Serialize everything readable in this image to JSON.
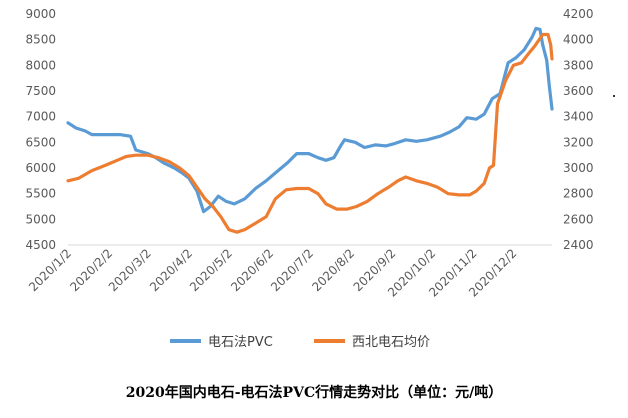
{
  "caption": "2020年国内电石-电石法PVC行情走势对比（单位：元/吨）",
  "chart_data": {
    "type": "line",
    "title": "",
    "xlabel": "",
    "ylabel": "",
    "grid": false,
    "legend_position": "bottom",
    "x_axis": {
      "type": "date",
      "range": [
        "2020-01-02",
        "2020-12-31"
      ],
      "tick_labels": [
        "2020/1/2",
        "2020/2/2",
        "2020/3/2",
        "2020/4/2",
        "2020/5/2",
        "2020/6/2",
        "2020/7/2",
        "2020/8/2",
        "2020/9/2",
        "2020/10/2",
        "2020/11/2",
        "2020/12/2"
      ],
      "tick_dates": [
        "2020-01-02",
        "2020-02-02",
        "2020-03-02",
        "2020-04-02",
        "2020-05-02",
        "2020-06-02",
        "2020-07-02",
        "2020-08-02",
        "2020-09-02",
        "2020-10-02",
        "2020-11-02",
        "2020-12-02"
      ]
    },
    "y_left": {
      "range": [
        4500,
        9000
      ],
      "ticks": [
        4500,
        5000,
        5500,
        6000,
        6500,
        7000,
        7500,
        8000,
        8500,
        9000
      ]
    },
    "y_right": {
      "range": [
        2400,
        4200
      ],
      "ticks": [
        2400,
        2600,
        2800,
        3000,
        3200,
        3400,
        3600,
        3800,
        4000,
        4200
      ]
    },
    "colors": {
      "pvc": "#5b9bd5",
      "carbide": "#ed7d31"
    },
    "series": [
      {
        "name": "电石法PVC",
        "axis": "left",
        "points": [
          [
            "2020-01-02",
            6880
          ],
          [
            "2020-01-08",
            6780
          ],
          [
            "2020-01-15",
            6720
          ],
          [
            "2020-01-20",
            6650
          ],
          [
            "2020-02-10",
            6650
          ],
          [
            "2020-02-18",
            6620
          ],
          [
            "2020-02-22",
            6350
          ],
          [
            "2020-03-02",
            6280
          ],
          [
            "2020-03-08",
            6200
          ],
          [
            "2020-03-14",
            6100
          ],
          [
            "2020-03-22",
            6000
          ],
          [
            "2020-03-28",
            5900
          ],
          [
            "2020-04-02",
            5800
          ],
          [
            "2020-04-08",
            5550
          ],
          [
            "2020-04-13",
            5150
          ],
          [
            "2020-04-18",
            5250
          ],
          [
            "2020-04-24",
            5450
          ],
          [
            "2020-04-30",
            5350
          ],
          [
            "2020-05-06",
            5300
          ],
          [
            "2020-05-14",
            5400
          ],
          [
            "2020-05-22",
            5600
          ],
          [
            "2020-05-30",
            5750
          ],
          [
            "2020-06-08",
            5950
          ],
          [
            "2020-06-15",
            6100
          ],
          [
            "2020-06-22",
            6280
          ],
          [
            "2020-07-01",
            6280
          ],
          [
            "2020-07-08",
            6200
          ],
          [
            "2020-07-14",
            6150
          ],
          [
            "2020-07-20",
            6200
          ],
          [
            "2020-07-25",
            6430
          ],
          [
            "2020-07-28",
            6550
          ],
          [
            "2020-08-05",
            6500
          ],
          [
            "2020-08-12",
            6400
          ],
          [
            "2020-08-20",
            6450
          ],
          [
            "2020-08-28",
            6430
          ],
          [
            "2020-09-04",
            6480
          ],
          [
            "2020-09-12",
            6550
          ],
          [
            "2020-09-20",
            6520
          ],
          [
            "2020-09-28",
            6550
          ],
          [
            "2020-10-08",
            6620
          ],
          [
            "2020-10-15",
            6700
          ],
          [
            "2020-10-22",
            6800
          ],
          [
            "2020-10-28",
            6980
          ],
          [
            "2020-11-04",
            6950
          ],
          [
            "2020-11-10",
            7050
          ],
          [
            "2020-11-16",
            7350
          ],
          [
            "2020-11-22",
            7450
          ],
          [
            "2020-11-28",
            8050
          ],
          [
            "2020-12-04",
            8150
          ],
          [
            "2020-12-10",
            8300
          ],
          [
            "2020-12-16",
            8550
          ],
          [
            "2020-12-19",
            8720
          ],
          [
            "2020-12-22",
            8700
          ],
          [
            "2020-12-24",
            8400
          ],
          [
            "2020-12-27",
            8100
          ],
          [
            "2020-12-29",
            7600
          ],
          [
            "2020-12-31",
            7150
          ]
        ]
      },
      {
        "name": "西北电石均价",
        "axis": "right",
        "points": [
          [
            "2020-01-02",
            2900
          ],
          [
            "2020-01-10",
            2920
          ],
          [
            "2020-01-20",
            2980
          ],
          [
            "2020-01-30",
            3020
          ],
          [
            "2020-02-08",
            3060
          ],
          [
            "2020-02-15",
            3090
          ],
          [
            "2020-02-22",
            3100
          ],
          [
            "2020-03-02",
            3100
          ],
          [
            "2020-03-10",
            3080
          ],
          [
            "2020-03-18",
            3050
          ],
          [
            "2020-03-26",
            3000
          ],
          [
            "2020-04-02",
            2940
          ],
          [
            "2020-04-08",
            2850
          ],
          [
            "2020-04-14",
            2760
          ],
          [
            "2020-04-20",
            2700
          ],
          [
            "2020-04-26",
            2620
          ],
          [
            "2020-05-02",
            2520
          ],
          [
            "2020-05-08",
            2500
          ],
          [
            "2020-05-14",
            2520
          ],
          [
            "2020-05-22",
            2570
          ],
          [
            "2020-05-30",
            2620
          ],
          [
            "2020-06-06",
            2760
          ],
          [
            "2020-06-14",
            2830
          ],
          [
            "2020-06-22",
            2840
          ],
          [
            "2020-07-01",
            2840
          ],
          [
            "2020-07-08",
            2800
          ],
          [
            "2020-07-14",
            2720
          ],
          [
            "2020-07-22",
            2680
          ],
          [
            "2020-07-30",
            2680
          ],
          [
            "2020-08-06",
            2700
          ],
          [
            "2020-08-14",
            2740
          ],
          [
            "2020-08-22",
            2800
          ],
          [
            "2020-08-30",
            2850
          ],
          [
            "2020-09-06",
            2900
          ],
          [
            "2020-09-12",
            2930
          ],
          [
            "2020-09-20",
            2900
          ],
          [
            "2020-09-28",
            2880
          ],
          [
            "2020-10-06",
            2850
          ],
          [
            "2020-10-14",
            2800
          ],
          [
            "2020-10-22",
            2790
          ],
          [
            "2020-10-30",
            2790
          ],
          [
            "2020-11-04",
            2820
          ],
          [
            "2020-11-10",
            2880
          ],
          [
            "2020-11-14",
            3000
          ],
          [
            "2020-11-17",
            3020
          ],
          [
            "2020-11-20",
            3500
          ],
          [
            "2020-11-26",
            3680
          ],
          [
            "2020-12-02",
            3800
          ],
          [
            "2020-12-08",
            3820
          ],
          [
            "2020-12-14",
            3900
          ],
          [
            "2020-12-18",
            3950
          ],
          [
            "2020-12-24",
            4040
          ],
          [
            "2020-12-28",
            4040
          ],
          [
            "2020-12-30",
            3960
          ],
          [
            "2020-12-31",
            3850
          ]
        ]
      }
    ]
  }
}
